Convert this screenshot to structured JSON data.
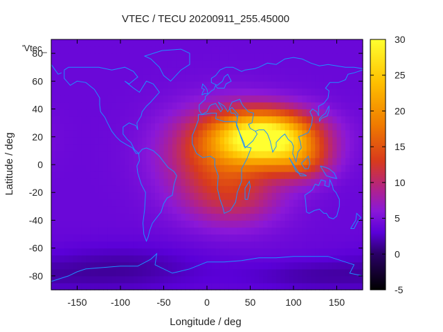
{
  "chart_data": {
    "type": "heatmap",
    "title": "VTEC / TECU 20200911_255.45000",
    "xlabel": "Longitude / deg",
    "ylabel": "Latitude / deg",
    "series_key": "'Vtec_",
    "xlim": [
      -180,
      180
    ],
    "ylim": [
      -90,
      90
    ],
    "x_ticks": [
      -150,
      -100,
      -50,
      0,
      50,
      100,
      150
    ],
    "y_ticks": [
      -80,
      -60,
      -40,
      -20,
      0,
      20,
      40,
      60,
      80
    ],
    "colorbar": {
      "range": [
        -5,
        30
      ],
      "ticks": [
        -5,
        0,
        5,
        10,
        15,
        20,
        25,
        30
      ],
      "palette": [
        "#000000",
        "#2a0066",
        "#5a00d8",
        "#8a18d8",
        "#b0228c",
        "#d83a1c",
        "#ef7a00",
        "#ffc000",
        "#ffff30"
      ],
      "palette_stops": [
        -5,
        0,
        3,
        6,
        9,
        13,
        18,
        24,
        30
      ]
    },
    "tec_field": {
      "base": 4.0,
      "grid_step_deg": 5,
      "peaks": [
        {
          "lon": 70,
          "lat": 20,
          "value": 26,
          "sigma_lon": 40,
          "sigma_lat": 13
        },
        {
          "lon": 15,
          "lat": 8,
          "value": 10,
          "sigma_lon": 45,
          "sigma_lat": 22
        },
        {
          "lon": 110,
          "lat": 2,
          "value": 7,
          "sigma_lon": 25,
          "sigma_lat": 10
        },
        {
          "lon": 30,
          "lat": -25,
          "value": 5,
          "sigma_lon": 40,
          "sigma_lat": 15
        }
      ],
      "lows": [
        {
          "lon": -100,
          "lat": -75,
          "value": -2.5,
          "sigma_lon": 70,
          "sigma_lat": 12
        },
        {
          "lon": 120,
          "lat": -80,
          "value": -2,
          "sigma_lon": 60,
          "sigma_lat": 8
        }
      ]
    },
    "coastline_color": "#1e90ff"
  }
}
